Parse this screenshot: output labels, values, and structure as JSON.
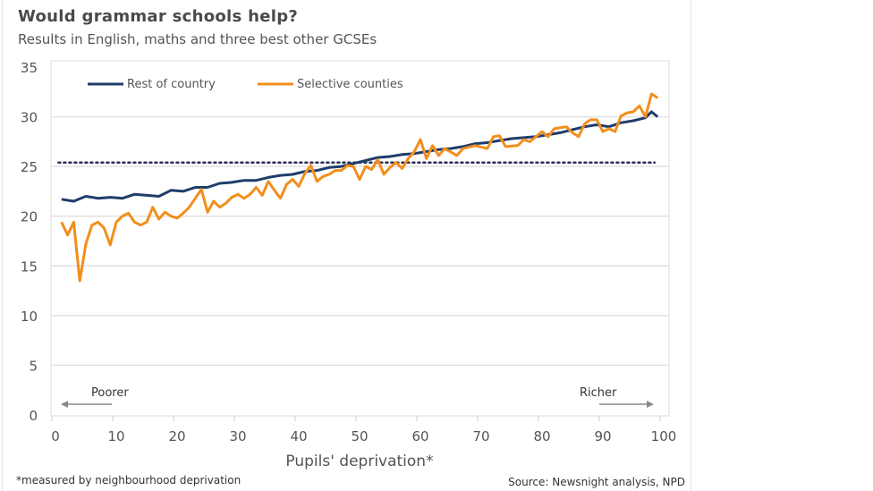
{
  "chart_data": {
    "type": "line",
    "title": "Would grammar schools help?",
    "subtitle": "Results in English, maths and three best other GCSEs",
    "xlabel": "Pupils' deprivation*",
    "ylabel": "",
    "xlim": [
      0,
      100
    ],
    "ylim": [
      0,
      35
    ],
    "xticks": [
      0,
      10,
      20,
      30,
      40,
      50,
      60,
      70,
      80,
      90,
      100
    ],
    "yticks": [
      0,
      5,
      10,
      15,
      20,
      25,
      30,
      35
    ],
    "grid": "horizontal",
    "legend_position": "top-left",
    "series": [
      {
        "name": "Rest of country",
        "color": "#1f3d6b",
        "x": [
          1,
          3,
          5,
          7,
          9,
          11,
          13,
          15,
          17,
          19,
          21,
          23,
          25,
          27,
          29,
          31,
          33,
          35,
          37,
          39,
          41,
          43,
          45,
          47,
          49,
          51,
          53,
          55,
          57,
          59,
          61,
          63,
          65,
          67,
          69,
          71,
          73,
          75,
          77,
          79,
          81,
          83,
          85,
          87,
          89,
          91,
          93,
          95,
          97,
          98,
          99
        ],
        "y": [
          21.7,
          21.5,
          22.0,
          21.8,
          21.9,
          21.8,
          22.2,
          22.1,
          22.0,
          22.6,
          22.5,
          22.9,
          22.9,
          23.3,
          23.4,
          23.6,
          23.6,
          23.9,
          24.1,
          24.2,
          24.5,
          24.6,
          24.9,
          25.0,
          25.3,
          25.6,
          25.9,
          26.0,
          26.2,
          26.3,
          26.5,
          26.7,
          26.8,
          27.0,
          27.3,
          27.4,
          27.6,
          27.8,
          27.9,
          28.0,
          28.2,
          28.4,
          28.7,
          29.0,
          29.2,
          29.0,
          29.4,
          29.6,
          29.9,
          30.5,
          30.0
        ]
      },
      {
        "name": "Selective counties",
        "color": "#f28e1c",
        "x": [
          1,
          2,
          3,
          4,
          5,
          6,
          7,
          8,
          9,
          10,
          11,
          12,
          13,
          14,
          15,
          16,
          17,
          18,
          19,
          20,
          21,
          22,
          23,
          24,
          25,
          26,
          27,
          28,
          29,
          30,
          31,
          32,
          33,
          34,
          35,
          36,
          37,
          38,
          39,
          40,
          41,
          42,
          43,
          44,
          45,
          46,
          47,
          48,
          49,
          50,
          51,
          52,
          53,
          54,
          55,
          56,
          57,
          58,
          59,
          60,
          61,
          62,
          63,
          64,
          66,
          67,
          69,
          71,
          72,
          73,
          74,
          76,
          77,
          78,
          80,
          81,
          82,
          84,
          85,
          86,
          87,
          88,
          89,
          90,
          91,
          92,
          93,
          94,
          95,
          96,
          97,
          98,
          99
        ],
        "y": [
          19.4,
          18.1,
          19.4,
          13.5,
          17.2,
          19.1,
          19.4,
          18.8,
          17.1,
          19.4,
          20.0,
          20.3,
          19.4,
          19.1,
          19.4,
          20.9,
          19.7,
          20.4,
          20.0,
          19.8,
          20.3,
          20.9,
          21.8,
          22.7,
          20.4,
          21.5,
          20.9,
          21.3,
          21.9,
          22.2,
          21.8,
          22.2,
          22.9,
          22.1,
          23.5,
          22.6,
          21.8,
          23.2,
          23.7,
          23.0,
          24.3,
          25.1,
          23.5,
          24.0,
          24.2,
          24.6,
          24.6,
          25.1,
          25.0,
          23.7,
          25.0,
          24.7,
          25.7,
          24.2,
          24.9,
          25.4,
          24.8,
          25.8,
          26.5,
          27.7,
          25.8,
          27.1,
          26.1,
          26.8,
          26.1,
          26.8,
          27.1,
          26.8,
          28.0,
          28.1,
          27.0,
          27.1,
          27.7,
          27.5,
          28.5,
          28.0,
          28.8,
          29.0,
          28.4,
          28.0,
          29.3,
          29.7,
          29.7,
          28.5,
          28.8,
          28.5,
          30.1,
          30.4,
          30.5,
          31.1,
          30.0,
          32.3,
          31.9
        ]
      }
    ],
    "reference_line": {
      "y": 25.4,
      "x_start": 0.5,
      "x_end": 98.5,
      "style": "dotted",
      "color": "#2b2f52"
    },
    "annotations": {
      "left": "Poorer",
      "right": "Richer"
    },
    "footnote": "*measured by neighbourhood deprivation",
    "source": "Source: Newsnight analysis, NPD"
  }
}
